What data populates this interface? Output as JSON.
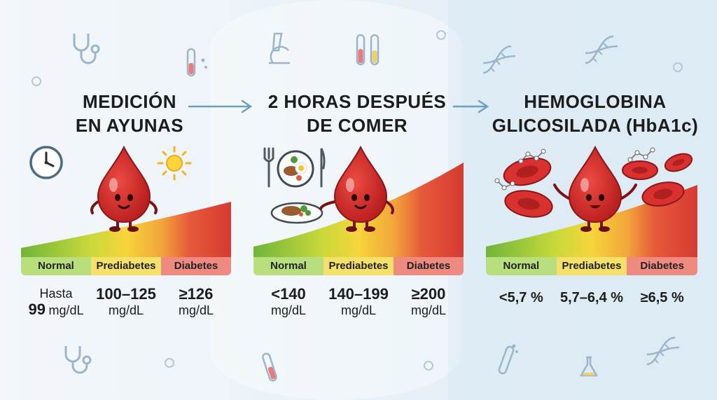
{
  "panels": [
    {
      "title_line1": "MEDICIÓN",
      "title_line2": "EN AYUNAS",
      "labels": [
        "Normal",
        "Prediabetes",
        "Diabetes"
      ],
      "values": [
        {
          "line1": "Hasta",
          "line2_num": "99",
          "line2_unit": "mg/dL"
        },
        {
          "line1": "100–125",
          "line2": "mg/dL"
        },
        {
          "line1": "≥126",
          "line2": "mg/dL"
        }
      ]
    },
    {
      "title_line1": "2 HORAS DESPUÉS",
      "title_line2": "DE COMER",
      "labels": [
        "Normal",
        "Prediabetes",
        "Diabetes"
      ],
      "values": [
        {
          "line1": "<140",
          "line2": "mg/dL"
        },
        {
          "line1": "140–199",
          "line2": "mg/dL"
        },
        {
          "line1": "≥200",
          "line2": "mg/dL"
        }
      ]
    },
    {
      "title_line1": "HEMOGLOBINA",
      "title_line2": "GLICOSILADA (HbA1c)",
      "labels": [
        "Normal",
        "Prediabetes",
        "Diabetes"
      ],
      "values": [
        {
          "line1": "<5,7 %"
        },
        {
          "line1": "5,7–6,4 %"
        },
        {
          "line1": "≥6,5 %"
        }
      ]
    }
  ],
  "colors": {
    "normal": "#8cc63f",
    "prediabetes": "#f2d43a",
    "diabetes": "#d9382f",
    "drop": "#d42a2a",
    "arrow": "#6f9fc0"
  },
  "icons": [
    "stethoscope-icon",
    "test-tube-icon",
    "microscope-icon",
    "dna-icon",
    "clock-icon",
    "sun-icon",
    "plate-food-icon",
    "fork-icon",
    "knife-icon",
    "red-blood-cell-icon",
    "molecule-icon",
    "flask-icon"
  ]
}
